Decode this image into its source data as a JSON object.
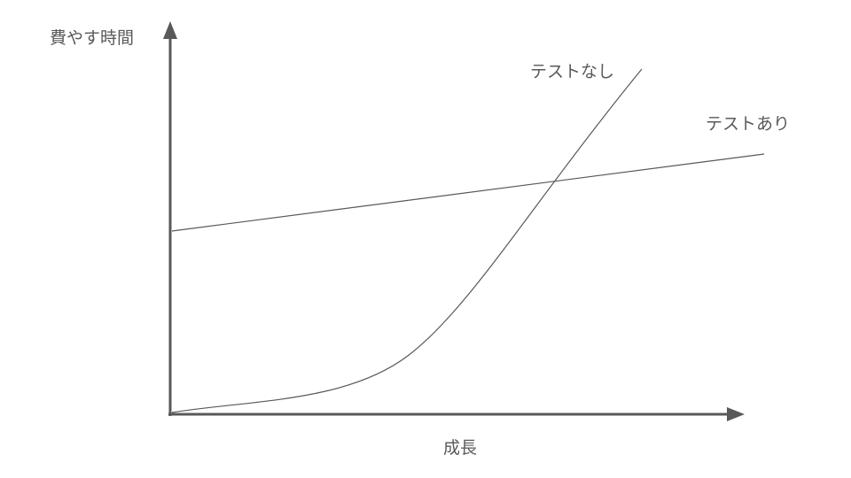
{
  "diagram": {
    "y_axis_label": "費やす時間",
    "x_axis_label": "成長",
    "curves": [
      {
        "name": "テストなし",
        "shape": "exponential"
      },
      {
        "name": "テストあり",
        "shape": "linear"
      }
    ],
    "colors": {
      "axis": "#595959",
      "curve": "#595959",
      "text": "#595959"
    }
  }
}
